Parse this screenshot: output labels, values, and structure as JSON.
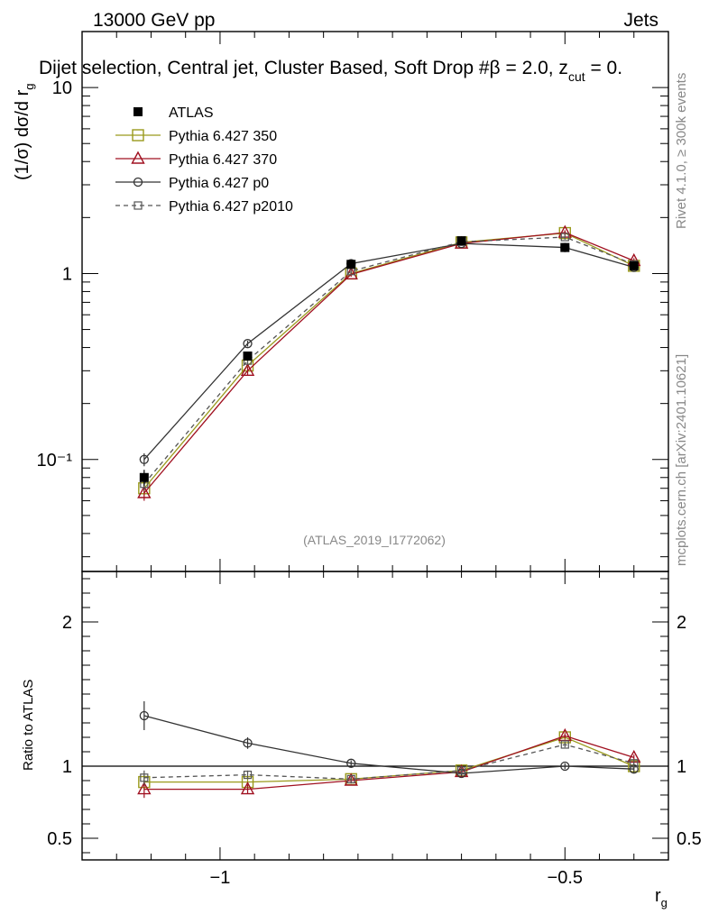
{
  "header": {
    "energy_label": "13000 GeV pp",
    "process_label": "Jets",
    "selection_label": "Dijet selection, Central jet, Cluster Based, Soft Drop #β = 2.0, z",
    "selection_sub": "cut",
    "selection_tail": " = 0.",
    "analysis_id": "(ATLAS_2019_I1772062)"
  },
  "side": {
    "rivet_label": "Rivet 4.1.0, ≥ 300k events",
    "mcplots_label": "mcplots.cern.ch [arXiv:2401.10621]"
  },
  "axes": {
    "main_ylabel": "(1/σ) dσ/d r",
    "main_ylabel_sub": "g",
    "ratio_ylabel": "Ratio to ATLAS",
    "xlabel": "r",
    "xlabel_sub": "g"
  },
  "colors": {
    "ATLAS": "#000000",
    "Pythia 6.427 350": "#9a9a1c",
    "Pythia 6.427 370": "#a01020",
    "Pythia 6.427 p0": "#333333",
    "Pythia 6.427 p2010": "#555555"
  },
  "chart_data": [
    {
      "type": "line",
      "panel": "main",
      "yscale": "log",
      "xlim": [
        -1.2,
        -0.35
      ],
      "ylim": [
        0.025,
        20
      ],
      "x": [
        -1.11,
        -0.96,
        -0.81,
        -0.65,
        -0.5,
        -0.4
      ],
      "ytick_labels": [
        "10⁻¹",
        "1",
        "10"
      ],
      "xtick_labels": [
        "−1",
        "−0.5"
      ],
      "series": [
        {
          "name": "ATLAS",
          "values": [
            0.08,
            0.36,
            1.12,
            1.5,
            1.38,
            1.1
          ],
          "errors": [
            0.008,
            0.02,
            0.04,
            0.05,
            0.05,
            0.04
          ],
          "marker": "filled-square"
        },
        {
          "name": "Pythia 6.427 350",
          "values": [
            0.07,
            0.32,
            1.0,
            1.47,
            1.65,
            1.1
          ],
          "errors": [
            0.006,
            0.015,
            0.03,
            0.04,
            0.05,
            0.04
          ],
          "marker": "open-square"
        },
        {
          "name": "Pythia 6.427 370",
          "values": [
            0.066,
            0.3,
            0.99,
            1.45,
            1.66,
            1.17
          ],
          "errors": [
            0.006,
            0.015,
            0.03,
            0.04,
            0.05,
            0.04
          ],
          "marker": "open-triangle"
        },
        {
          "name": "Pythia 6.427 p0",
          "values": [
            0.1,
            0.42,
            1.13,
            1.45,
            1.38,
            1.08
          ],
          "errors": [
            0.008,
            0.015,
            0.03,
            0.04,
            0.04,
            0.04
          ],
          "marker": "open-circle"
        },
        {
          "name": "Pythia 6.427 p2010",
          "values": [
            0.074,
            0.34,
            1.03,
            1.48,
            1.57,
            1.12
          ],
          "errors": [
            0.006,
            0.015,
            0.03,
            0.04,
            0.05,
            0.04
          ],
          "marker": "open-square-small",
          "dashed": true
        }
      ]
    },
    {
      "type": "line",
      "panel": "ratio",
      "yscale": "linear",
      "xlim": [
        -1.2,
        -0.35
      ],
      "ylim": [
        0.35,
        2.35
      ],
      "x": [
        -1.11,
        -0.96,
        -0.81,
        -0.65,
        -0.5,
        -0.4
      ],
      "ytick_labels": [
        "0.5",
        "1",
        "2"
      ],
      "ylabel": "Ratio to ATLAS",
      "series": [
        {
          "name": "Pythia 6.427 350",
          "values": [
            0.89,
            0.89,
            0.91,
            0.97,
            1.2,
            1.0
          ],
          "errors": [
            0.05,
            0.04,
            0.02,
            0.02,
            0.02,
            0.02
          ]
        },
        {
          "name": "Pythia 6.427 370",
          "values": [
            0.84,
            0.84,
            0.9,
            0.96,
            1.21,
            1.06
          ],
          "errors": [
            0.06,
            0.03,
            0.02,
            0.02,
            0.02,
            0.02
          ]
        },
        {
          "name": "Pythia 6.427 p0",
          "values": [
            1.35,
            1.16,
            1.02,
            0.95,
            1.0,
            0.98
          ],
          "errors": [
            0.1,
            0.04,
            0.02,
            0.02,
            0.02,
            0.03
          ]
        },
        {
          "name": "Pythia 6.427 p2010",
          "values": [
            0.92,
            0.94,
            0.91,
            0.97,
            1.15,
            1.02
          ],
          "errors": [
            0.05,
            0.03,
            0.02,
            0.02,
            0.02,
            0.02
          ]
        }
      ]
    }
  ]
}
